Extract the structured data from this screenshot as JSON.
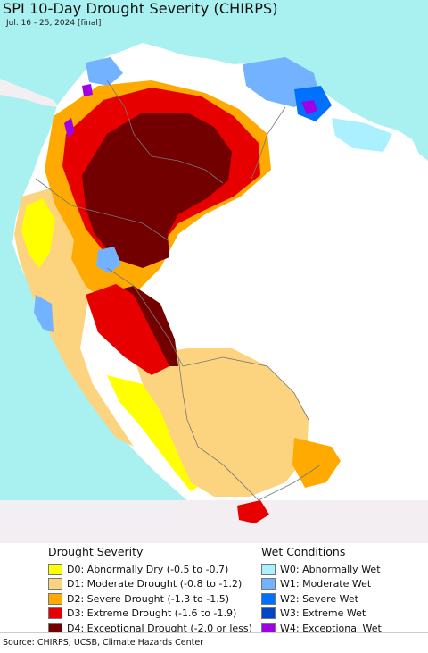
{
  "title": "SPI 10-Day Drought Severity (CHIRPS)",
  "subtitle": "Jul. 16 - 25, 2024 [final]",
  "colors": {
    "ocean": "#a9f0f0",
    "outside_land": "#f2eef2",
    "no_data_land": "#ffffff",
    "border": "#777777"
  },
  "legend": {
    "drought": {
      "heading": "Drought Severity",
      "items": [
        {
          "label": "D0: Abnormally Dry (-0.5 to -0.7)",
          "color": "#ffff00"
        },
        {
          "label": "D1: Moderate Drought (-0.8 to -1.2)",
          "color": "#fcd37f"
        },
        {
          "label": "D2: Severe Drought (-1.3 to -1.5)",
          "color": "#ffaa00"
        },
        {
          "label": "D3: Extreme Drought (-1.6 to -1.9)",
          "color": "#e60000"
        },
        {
          "label": "D4: Exceptional Drought (-2.0 or less)",
          "color": "#730000"
        }
      ]
    },
    "wet": {
      "heading": "Wet Conditions",
      "items": [
        {
          "label": "W0: Abnormally Wet",
          "color": "#aaf0ff"
        },
        {
          "label": "W1: Moderate Wet",
          "color": "#73b2ff"
        },
        {
          "label": "W2: Severe Wet",
          "color": "#0070ff"
        },
        {
          "label": "W3: Extreme Wet",
          "color": "#0046c8"
        },
        {
          "label": "W4: Exceptional Wet",
          "color": "#a000e6"
        }
      ]
    }
  },
  "source": "Source: CHIRPS, UCSB, Climate Hazards Center"
}
